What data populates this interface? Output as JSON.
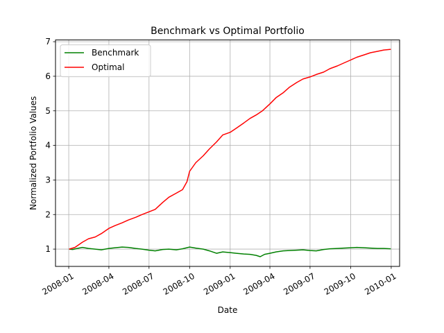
{
  "chart_data": {
    "type": "line",
    "title": "Benchmark vs Optimal Portfolio",
    "xlabel": "Date",
    "ylabel": "Normalized Portfolio Values",
    "x_ticks": [
      "2008-01",
      "2008-04",
      "2008-07",
      "2008-10",
      "2009-01",
      "2009-04",
      "2009-07",
      "2009-10",
      "2010-01"
    ],
    "y_ticks": [
      "1",
      "2",
      "3",
      "4",
      "5",
      "6",
      "7"
    ],
    "ylim": [
      0.5,
      7.05
    ],
    "xlim": [
      "2007-12-02",
      "2010-01-20"
    ],
    "grid": true,
    "legend_position": "top-left",
    "series": [
      {
        "name": "Benchmark",
        "color": "#008000",
        "x": [
          "2008-01-02",
          "2008-01-10",
          "2008-01-20",
          "2008-02-01",
          "2008-02-15",
          "2008-03-01",
          "2008-03-15",
          "2008-04-01",
          "2008-04-15",
          "2008-05-01",
          "2008-05-15",
          "2008-06-01",
          "2008-06-15",
          "2008-07-01",
          "2008-07-15",
          "2008-08-01",
          "2008-08-15",
          "2008-09-01",
          "2008-09-15",
          "2008-10-01",
          "2008-10-15",
          "2008-11-01",
          "2008-11-15",
          "2008-12-01",
          "2008-12-15",
          "2009-01-01",
          "2009-01-15",
          "2009-02-01",
          "2009-02-15",
          "2009-03-01",
          "2009-03-10",
          "2009-03-20",
          "2009-04-01",
          "2009-04-15",
          "2009-05-01",
          "2009-05-15",
          "2009-06-01",
          "2009-06-15",
          "2009-07-01",
          "2009-07-15",
          "2009-08-01",
          "2009-08-15",
          "2009-09-01",
          "2009-09-15",
          "2009-10-01",
          "2009-10-15",
          "2009-11-01",
          "2009-11-15",
          "2009-12-01",
          "2009-12-15",
          "2009-12-31"
        ],
        "values": [
          1.0,
          0.99,
          1.02,
          1.05,
          1.02,
          1.0,
          0.98,
          1.02,
          1.04,
          1.06,
          1.05,
          1.02,
          1.0,
          0.97,
          0.95,
          0.99,
          1.0,
          0.98,
          1.01,
          1.06,
          1.03,
          1.0,
          0.95,
          0.88,
          0.92,
          0.9,
          0.88,
          0.86,
          0.85,
          0.82,
          0.78,
          0.85,
          0.88,
          0.92,
          0.95,
          0.96,
          0.97,
          0.98,
          0.96,
          0.95,
          0.99,
          1.01,
          1.02,
          1.03,
          1.04,
          1.05,
          1.04,
          1.03,
          1.02,
          1.02,
          1.01
        ]
      },
      {
        "name": "Optimal",
        "color": "#ff0000",
        "x": [
          "2008-01-02",
          "2008-01-15",
          "2008-02-01",
          "2008-02-15",
          "2008-03-01",
          "2008-03-15",
          "2008-04-01",
          "2008-04-15",
          "2008-05-01",
          "2008-05-15",
          "2008-06-01",
          "2008-06-15",
          "2008-07-01",
          "2008-07-15",
          "2008-08-01",
          "2008-08-15",
          "2008-09-01",
          "2008-09-15",
          "2008-09-25",
          "2008-10-01",
          "2008-10-15",
          "2008-11-01",
          "2008-11-15",
          "2008-12-01",
          "2008-12-15",
          "2009-01-01",
          "2009-01-15",
          "2009-02-01",
          "2009-02-15",
          "2009-03-01",
          "2009-03-15",
          "2009-04-01",
          "2009-04-15",
          "2009-05-01",
          "2009-05-15",
          "2009-06-01",
          "2009-06-15",
          "2009-07-01",
          "2009-07-15",
          "2009-08-01",
          "2009-08-15",
          "2009-09-01",
          "2009-09-15",
          "2009-10-01",
          "2009-10-15",
          "2009-11-01",
          "2009-11-15",
          "2009-12-01",
          "2009-12-15",
          "2009-12-31"
        ],
        "values": [
          1.0,
          1.05,
          1.2,
          1.3,
          1.35,
          1.45,
          1.6,
          1.68,
          1.76,
          1.84,
          1.92,
          2.0,
          2.08,
          2.15,
          2.35,
          2.5,
          2.62,
          2.72,
          2.95,
          3.25,
          3.5,
          3.7,
          3.9,
          4.1,
          4.3,
          4.38,
          4.5,
          4.65,
          4.78,
          4.88,
          5.0,
          5.2,
          5.38,
          5.52,
          5.68,
          5.82,
          5.92,
          5.98,
          6.05,
          6.12,
          6.22,
          6.3,
          6.38,
          6.47,
          6.55,
          6.62,
          6.68,
          6.72,
          6.76,
          6.78
        ]
      }
    ]
  }
}
